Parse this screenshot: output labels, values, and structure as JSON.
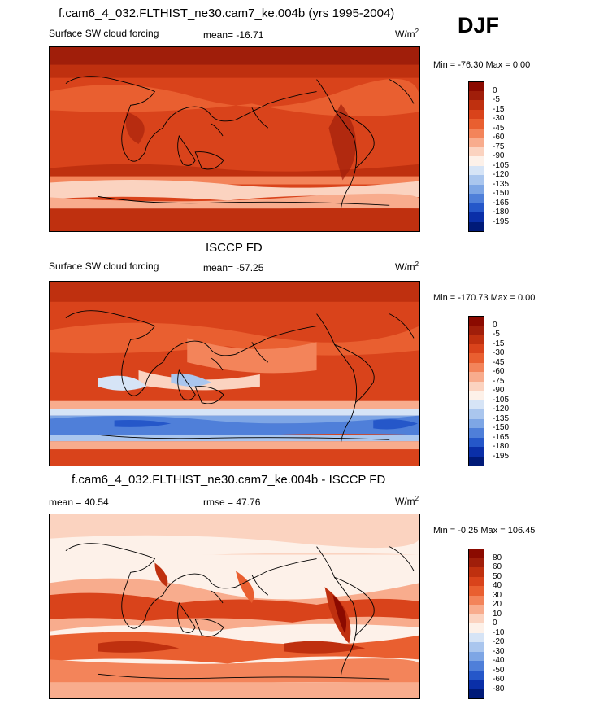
{
  "season": "DJF",
  "panels": [
    {
      "title": "f.cam6_4_032.FLTHIST_ne30.cam7_ke.004b (yrs 1995-2004)",
      "variable": "Surface SW cloud forcing",
      "stat": "mean= -16.71",
      "units": "W/m",
      "units_sup": "2",
      "minmax": "Min = -76.30 Max =   0.00",
      "cbar_labels": [
        "0",
        "-5",
        "-15",
        "-30",
        "-45",
        "-60",
        "-75",
        "-90",
        "-105",
        "-120",
        "-135",
        "-150",
        "-165",
        "-180",
        "-195"
      ],
      "cbar_colors": [
        "#8b0a00",
        "#a01e0a",
        "#bf300f",
        "#d9431b",
        "#e95f30",
        "#f3845a",
        "#f8ac8d",
        "#fbd3c0",
        "#fdf1e9",
        "#d6e4f6",
        "#aac6ee",
        "#7ea6e5",
        "#4f7fd9",
        "#2557c9",
        "#0a2fa8",
        "#001a78"
      ]
    },
    {
      "title": "ISCCP FD",
      "variable": "Surface SW cloud forcing",
      "stat": "mean= -57.25",
      "units": "W/m",
      "units_sup": "2",
      "minmax": "Min = -170.73 Max =   0.00",
      "cbar_labels": [
        "0",
        "-5",
        "-15",
        "-30",
        "-45",
        "-60",
        "-75",
        "-90",
        "-105",
        "-120",
        "-135",
        "-150",
        "-165",
        "-180",
        "-195"
      ],
      "cbar_colors": [
        "#8b0a00",
        "#a01e0a",
        "#bf300f",
        "#d9431b",
        "#e95f30",
        "#f3845a",
        "#f8ac8d",
        "#fbd3c0",
        "#fdf1e9",
        "#d6e4f6",
        "#aac6ee",
        "#7ea6e5",
        "#4f7fd9",
        "#2557c9",
        "#0a2fa8",
        "#001a78"
      ]
    },
    {
      "title": "f.cam6_4_032.FLTHIST_ne30.cam7_ke.004b - ISCCP FD",
      "variable": "mean =  40.54",
      "stat": "rmse =  47.76",
      "units": "W/m",
      "units_sup": "2",
      "minmax": "Min =  -0.25 Max = 106.45",
      "cbar_labels": [
        "80",
        "60",
        "50",
        "40",
        "30",
        "20",
        "10",
        "0",
        "-10",
        "-20",
        "-30",
        "-40",
        "-50",
        "-60",
        "-80"
      ],
      "cbar_colors": [
        "#8b0a00",
        "#a01e0a",
        "#bf300f",
        "#d9431b",
        "#e95f30",
        "#f3845a",
        "#f8ac8d",
        "#fbd3c0",
        "#fdf1e9",
        "#d6e4f6",
        "#aac6ee",
        "#7ea6e5",
        "#4f7fd9",
        "#2557c9",
        "#0a2fa8",
        "#001a78"
      ]
    }
  ]
}
